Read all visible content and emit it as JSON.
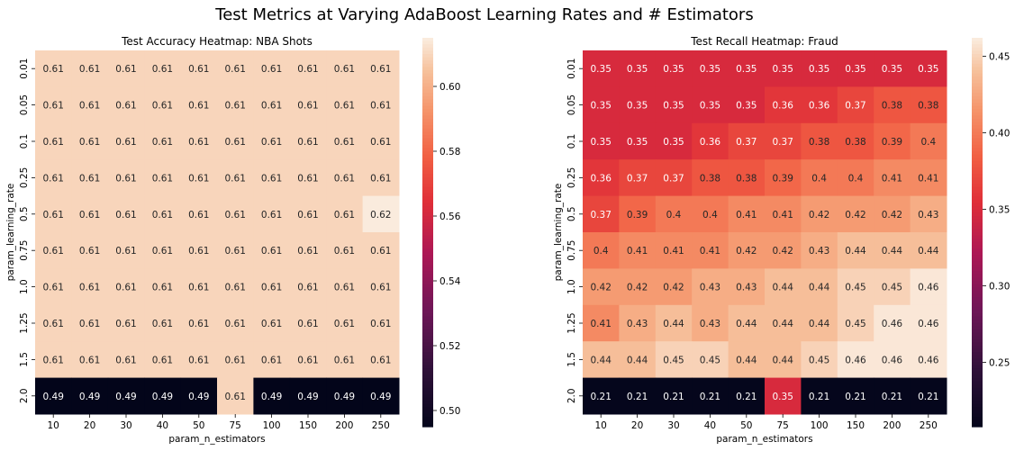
{
  "suptitle": "Test Metrics at Varying AdaBoost Learning Rates and # Estimators",
  "chart_data": [
    {
      "type": "heatmap",
      "title": "Test Accuracy Heatmap: NBA Shots",
      "xlabel": "param_n_estimators",
      "ylabel": "param_learning_rate",
      "x": [
        "10",
        "20",
        "30",
        "40",
        "50",
        "75",
        "100",
        "150",
        "200",
        "250"
      ],
      "y": [
        "0.01",
        "0.05",
        "0.1",
        "0.25",
        "0.5",
        "0.75",
        "1.0",
        "1.25",
        "1.5",
        "2.0"
      ],
      "values": [
        [
          0.61,
          0.61,
          0.61,
          0.61,
          0.61,
          0.61,
          0.61,
          0.61,
          0.61,
          0.61
        ],
        [
          0.61,
          0.61,
          0.61,
          0.61,
          0.61,
          0.61,
          0.61,
          0.61,
          0.61,
          0.61
        ],
        [
          0.61,
          0.61,
          0.61,
          0.61,
          0.61,
          0.61,
          0.61,
          0.61,
          0.61,
          0.61
        ],
        [
          0.61,
          0.61,
          0.61,
          0.61,
          0.61,
          0.61,
          0.61,
          0.61,
          0.61,
          0.61
        ],
        [
          0.61,
          0.61,
          0.61,
          0.61,
          0.61,
          0.61,
          0.61,
          0.61,
          0.61,
          0.62
        ],
        [
          0.61,
          0.61,
          0.61,
          0.61,
          0.61,
          0.61,
          0.61,
          0.61,
          0.61,
          0.61
        ],
        [
          0.61,
          0.61,
          0.61,
          0.61,
          0.61,
          0.61,
          0.61,
          0.61,
          0.61,
          0.61
        ],
        [
          0.61,
          0.61,
          0.61,
          0.61,
          0.61,
          0.61,
          0.61,
          0.61,
          0.61,
          0.61
        ],
        [
          0.61,
          0.61,
          0.61,
          0.61,
          0.61,
          0.61,
          0.61,
          0.61,
          0.61,
          0.61
        ],
        [
          0.49,
          0.49,
          0.49,
          0.49,
          0.49,
          0.61,
          0.49,
          0.49,
          0.49,
          0.49
        ]
      ],
      "colorbar": {
        "min": 0.495,
        "max": 0.615,
        "ticks": [
          "0.50",
          "0.52",
          "0.54",
          "0.56",
          "0.58",
          "0.60"
        ]
      },
      "colormap": "rocket"
    },
    {
      "type": "heatmap",
      "title": "Test Recall Heatmap: Fraud",
      "xlabel": "param_n_estimators",
      "ylabel": "param_learning_rate",
      "x": [
        "10",
        "20",
        "30",
        "40",
        "50",
        "75",
        "100",
        "150",
        "200",
        "250"
      ],
      "y": [
        "0.01",
        "0.05",
        "0.1",
        "0.25",
        "0.5",
        "0.75",
        "1.0",
        "1.25",
        "1.5",
        "2.0"
      ],
      "values": [
        [
          0.35,
          0.35,
          0.35,
          0.35,
          0.35,
          0.35,
          0.35,
          0.35,
          0.35,
          0.35
        ],
        [
          0.35,
          0.35,
          0.35,
          0.35,
          0.35,
          0.36,
          0.36,
          0.37,
          0.38,
          0.38
        ],
        [
          0.35,
          0.35,
          0.35,
          0.36,
          0.37,
          0.37,
          0.38,
          0.38,
          0.39,
          0.4
        ],
        [
          0.36,
          0.37,
          0.37,
          0.38,
          0.38,
          0.39,
          0.4,
          0.4,
          0.41,
          0.41
        ],
        [
          0.37,
          0.39,
          0.4,
          0.4,
          0.41,
          0.41,
          0.42,
          0.42,
          0.42,
          0.43
        ],
        [
          0.4,
          0.41,
          0.41,
          0.41,
          0.42,
          0.42,
          0.43,
          0.44,
          0.44,
          0.44
        ],
        [
          0.42,
          0.42,
          0.42,
          0.43,
          0.43,
          0.44,
          0.44,
          0.45,
          0.45,
          0.46
        ],
        [
          0.41,
          0.43,
          0.44,
          0.43,
          0.44,
          0.44,
          0.44,
          0.45,
          0.46,
          0.46
        ],
        [
          0.44,
          0.44,
          0.45,
          0.45,
          0.44,
          0.44,
          0.45,
          0.46,
          0.46,
          0.46
        ],
        [
          0.21,
          0.21,
          0.21,
          0.21,
          0.21,
          0.35,
          0.21,
          0.21,
          0.21,
          0.21
        ]
      ],
      "colorbar": {
        "min": 0.208,
        "max": 0.462,
        "ticks": [
          "0.25",
          "0.30",
          "0.35",
          "0.40",
          "0.45"
        ]
      },
      "colormap": "rocket"
    }
  ]
}
